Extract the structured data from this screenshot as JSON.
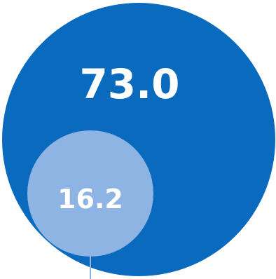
{
  "chart_data": {
    "type": "bubble",
    "title": "",
    "series": [
      {
        "value": 73.0,
        "label": "73.0",
        "color": "#0A6ABE"
      },
      {
        "value": 16.2,
        "label": "16.2",
        "color": "#8EB4E3"
      }
    ],
    "leader_line_color": "#8EB4E3"
  }
}
